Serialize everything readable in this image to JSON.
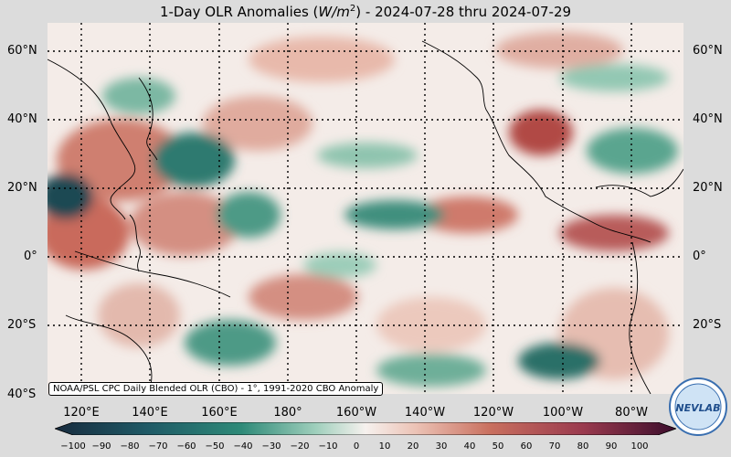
{
  "title_prefix": "1-Day OLR Anomalies (",
  "title_unit_base": "W/m",
  "title_unit_exp": "2",
  "title_suffix": ") - 2024-07-28 thru 2024-07-29",
  "lat_labels": [
    "60°N",
    "40°N",
    "20°N",
    "0°",
    "20°S",
    "40°S"
  ],
  "lon_labels": [
    "120°E",
    "140°E",
    "160°E",
    "180°",
    "160°W",
    "140°W",
    "120°W",
    "100°W",
    "80°W"
  ],
  "credit": "NOAA/PSL CPC Daily Blended OLR (CBO) - 1°, 1991-2020 CBO Anomaly",
  "colorbar_ticks": [
    "−100",
    "−90",
    "−80",
    "−70",
    "−60",
    "−50",
    "−40",
    "−30",
    "−20",
    "−10",
    "0",
    "10",
    "20",
    "30",
    "40",
    "50",
    "60",
    "70",
    "80",
    "90",
    "100"
  ],
  "logo_text": "NEVLAB",
  "colors": {
    "negative_strong": "#172b3e",
    "negative_mid": "#2e8a78",
    "negative_light": "#b8dccd",
    "neutral": "#f6f1ee",
    "positive_light": "#e8b4a4",
    "positive_mid": "#c0604e",
    "positive_strong": "#5e1a3a",
    "grid": "#000000"
  }
}
